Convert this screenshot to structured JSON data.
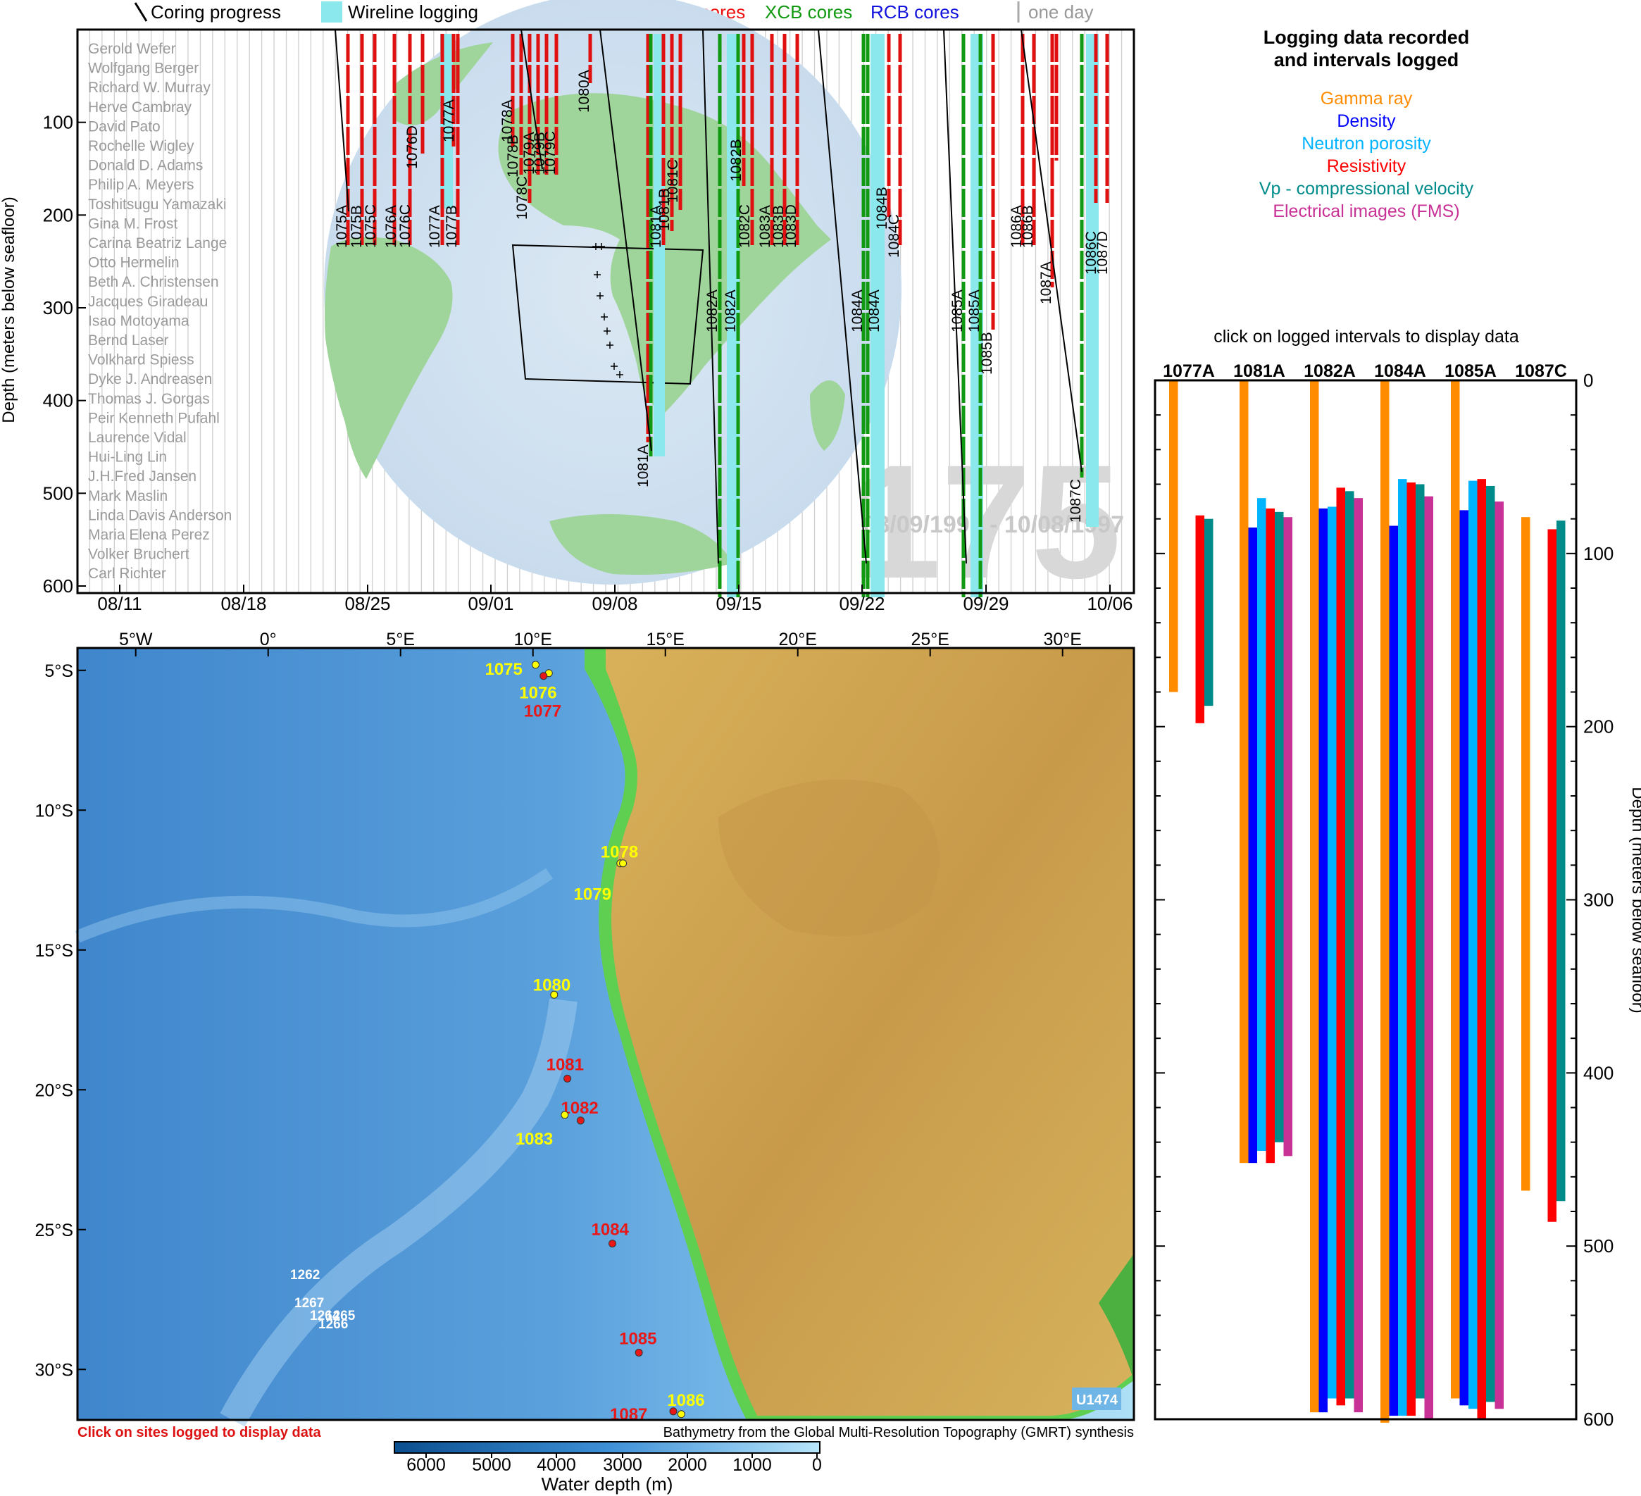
{
  "legend": {
    "coring": "Coring progress",
    "wireline": "Wireline logging",
    "apc": "APC cores",
    "xcb": "XCB cores",
    "rcb": "RCB cores",
    "one_day": "one day"
  },
  "timeline": {
    "ylabel": "Depth (meters below seafloor)",
    "y_ticks": [
      "100",
      "200",
      "300",
      "400",
      "500",
      "600"
    ],
    "x_ticks": [
      "08/11",
      "08/18",
      "08/25",
      "09/01",
      "09/08",
      "09/15",
      "09/22",
      "09/29",
      "10/06"
    ],
    "expedition": "175",
    "date_range": "08/09/1997 - 10/08/1997",
    "scientists": [
      "Gerold Wefer",
      "Wolfgang Berger",
      "Richard W. Murray",
      "Herve Cambray",
      "David Pato",
      "Rochelle Wigley",
      "Donald D. Adams",
      "Philip A. Meyers",
      "Toshitsugu Yamazaki",
      "Gina M. Frost",
      "Carina Beatriz Lange",
      "Otto Hermelin",
      "Beth A. Christensen",
      "Jacques Giradeau",
      "Isao Motoyama",
      "Bernd Laser",
      "Volkhard Spiess",
      "Dyke J. Andreasen",
      "Thomas J. Gorgas",
      "Peir Kenneth Pufahl",
      "Laurence Vidal",
      "Hui-Ling Lin",
      "J.H.Fred Jansen",
      "Mark Maslin",
      "Linda Davis Anderson",
      "Maria Elena Perez",
      "Volker Bruchert",
      "Carl Richter"
    ],
    "hole_labels": [
      {
        "text": "1075A",
        "x": 492,
        "y": 352
      },
      {
        "text": "1075B",
        "x": 513,
        "y": 352
      },
      {
        "text": "1075C",
        "x": 533,
        "y": 352
      },
      {
        "text": "1076A",
        "x": 562,
        "y": 352
      },
      {
        "text": "1076C",
        "x": 582,
        "y": 352
      },
      {
        "text": "1076D",
        "x": 592,
        "y": 240
      },
      {
        "text": "1077A",
        "x": 624,
        "y": 352
      },
      {
        "text": "1077A",
        "x": 644,
        "y": 202
      },
      {
        "text": "1077B",
        "x": 648,
        "y": 352
      },
      {
        "text": "1078A",
        "x": 727,
        "y": 202
      },
      {
        "text": "1078B",
        "x": 735,
        "y": 252
      },
      {
        "text": "1078C",
        "x": 748,
        "y": 312
      },
      {
        "text": "1079A",
        "x": 758,
        "y": 248
      },
      {
        "text": "1079B",
        "x": 773,
        "y": 248
      },
      {
        "text": "1079C",
        "x": 788,
        "y": 248
      },
      {
        "text": "1080A",
        "x": 836,
        "y": 160
      },
      {
        "text": "1081A",
        "x": 920,
        "y": 692
      },
      {
        "text": "1081A",
        "x": 938,
        "y": 352
      },
      {
        "text": "1081B",
        "x": 950,
        "y": 328
      },
      {
        "text": "1081C",
        "x": 962,
        "y": 288
      },
      {
        "text": "1082A",
        "x": 1018,
        "y": 472
      },
      {
        "text": "1082A",
        "x": 1044,
        "y": 472
      },
      {
        "text": "1082B",
        "x": 1052,
        "y": 258
      },
      {
        "text": "1082C",
        "x": 1064,
        "y": 352
      },
      {
        "text": "1083A",
        "x": 1093,
        "y": 352
      },
      {
        "text": "1083B",
        "x": 1112,
        "y": 352
      },
      {
        "text": "1083D",
        "x": 1130,
        "y": 352
      },
      {
        "text": "1084A",
        "x": 1224,
        "y": 472
      },
      {
        "text": "1084A",
        "x": 1248,
        "y": 472
      },
      {
        "text": "1084B",
        "x": 1259,
        "y": 326
      },
      {
        "text": "1084C",
        "x": 1276,
        "y": 366
      },
      {
        "text": "1085A",
        "x": 1366,
        "y": 472
      },
      {
        "text": "1085A",
        "x": 1390,
        "y": 472
      },
      {
        "text": "1085B",
        "x": 1408,
        "y": 532
      },
      {
        "text": "1086A",
        "x": 1450,
        "y": 352
      },
      {
        "text": "1086B",
        "x": 1466,
        "y": 352
      },
      {
        "text": "1087A",
        "x": 1492,
        "y": 432
      },
      {
        "text": "1087C",
        "x": 1534,
        "y": 742
      },
      {
        "text": "1086C",
        "x": 1556,
        "y": 390
      },
      {
        "text": "1087D",
        "x": 1572,
        "y": 390
      }
    ]
  },
  "log_panel": {
    "title_line1": "Logging data recorded",
    "title_line2": "and intervals logged",
    "categories": [
      {
        "name": "Gamma ray",
        "color": "#ff8c00"
      },
      {
        "name": "Density",
        "color": "#0000ff"
      },
      {
        "name": "Neutron porosity",
        "color": "#00b4ff"
      },
      {
        "name": "Resistivity",
        "color": "#ff0000"
      },
      {
        "name": "Vp - compressional velocity",
        "color": "#008b8b"
      },
      {
        "name": "Electrical images (FMS)",
        "color": "#c83296"
      }
    ],
    "instruction": "click on logged intervals to display data",
    "ylabel": "Depth (meters below seafloor)",
    "y_ticks": [
      "0",
      "100",
      "200",
      "300",
      "400",
      "500",
      "600"
    ]
  },
  "chart_data": {
    "type": "bar",
    "y_range": [
      0,
      600
    ],
    "y_inverted": true,
    "holes": [
      {
        "name": "1077A",
        "intervals": [
          {
            "log": "Gamma ray",
            "top": 0,
            "bottom": 180
          },
          {
            "log": "Resistivity",
            "top": 78,
            "bottom": 198
          },
          {
            "log": "Vp - compressional velocity",
            "top": 80,
            "bottom": 188
          }
        ]
      },
      {
        "name": "1081A",
        "intervals": [
          {
            "log": "Gamma ray",
            "top": 0,
            "bottom": 452
          },
          {
            "log": "Density",
            "top": 85,
            "bottom": 452
          },
          {
            "log": "Neutron porosity",
            "top": 68,
            "bottom": 445
          },
          {
            "log": "Resistivity",
            "top": 74,
            "bottom": 452
          },
          {
            "log": "Vp - compressional velocity",
            "top": 76,
            "bottom": 440
          },
          {
            "log": "Electrical images (FMS)",
            "top": 79,
            "bottom": 448
          }
        ]
      },
      {
        "name": "1082A",
        "intervals": [
          {
            "log": "Gamma ray",
            "top": 0,
            "bottom": 596
          },
          {
            "log": "Density",
            "top": 74,
            "bottom": 596
          },
          {
            "log": "Neutron porosity",
            "top": 73,
            "bottom": 588
          },
          {
            "log": "Resistivity",
            "top": 62,
            "bottom": 592
          },
          {
            "log": "Vp - compressional velocity",
            "top": 64,
            "bottom": 588
          },
          {
            "log": "Electrical images (FMS)",
            "top": 68,
            "bottom": 596
          }
        ]
      },
      {
        "name": "1084A",
        "intervals": [
          {
            "log": "Gamma ray",
            "top": 0,
            "bottom": 602
          },
          {
            "log": "Density",
            "top": 84,
            "bottom": 598
          },
          {
            "log": "Neutron porosity",
            "top": 57,
            "bottom": 598
          },
          {
            "log": "Resistivity",
            "top": 59,
            "bottom": 598
          },
          {
            "log": "Vp - compressional velocity",
            "top": 60,
            "bottom": 588
          },
          {
            "log": "Electrical images (FMS)",
            "top": 67,
            "bottom": 600
          }
        ]
      },
      {
        "name": "1085A",
        "intervals": [
          {
            "log": "Gamma ray",
            "top": 0,
            "bottom": 588
          },
          {
            "log": "Density",
            "top": 75,
            "bottom": 592
          },
          {
            "log": "Neutron porosity",
            "top": 58,
            "bottom": 594
          },
          {
            "log": "Resistivity",
            "top": 57,
            "bottom": 600
          },
          {
            "log": "Vp - compressional velocity",
            "top": 61,
            "bottom": 590
          },
          {
            "log": "Electrical images (FMS)",
            "top": 70,
            "bottom": 594
          }
        ]
      },
      {
        "name": "1087C",
        "intervals": [
          {
            "log": "Gamma ray",
            "top": 79,
            "bottom": 468
          },
          {
            "log": "Resistivity",
            "top": 86,
            "bottom": 486
          },
          {
            "log": "Vp - compressional velocity",
            "top": 81,
            "bottom": 474
          }
        ]
      }
    ]
  },
  "map": {
    "lon_labels": [
      "5°W",
      "0°",
      "5°E",
      "10°E",
      "15°E",
      "20°E",
      "25°E",
      "30°E"
    ],
    "lat_labels": [
      "5°S",
      "10°S",
      "15°S",
      "20°S",
      "25°S",
      "30°S"
    ],
    "sites": [
      {
        "label": "1075",
        "color": "#ffff00",
        "lat": -4.8,
        "lon": 10.1
      },
      {
        "label": "1076",
        "color": "#ffff00",
        "lat": -5.1,
        "lon": 10.6
      },
      {
        "label": "1077",
        "color": "#e81818",
        "lat": -5.2,
        "lon": 10.4
      },
      {
        "label": "1078",
        "color": "#ffff00",
        "lat": -11.9,
        "lon": 13.3
      },
      {
        "label": "1079",
        "color": "#ffff00",
        "lat": -11.9,
        "lon": 13.4
      },
      {
        "label": "1080",
        "color": "#ffff00",
        "lat": -16.6,
        "lon": 10.8
      },
      {
        "label": "1081",
        "color": "#e81818",
        "lat": -19.6,
        "lon": 11.3
      },
      {
        "label": "1082",
        "color": "#e81818",
        "lat": -21.1,
        "lon": 11.8
      },
      {
        "label": "1083",
        "color": "#ffff00",
        "lat": -20.9,
        "lon": 11.2
      },
      {
        "label": "1084",
        "color": "#e81818",
        "lat": -25.5,
        "lon": 13.0
      },
      {
        "label": "1085",
        "color": "#e81818",
        "lat": -29.4,
        "lon": 14.0
      },
      {
        "label": "1086",
        "color": "#ffff00",
        "lat": -31.6,
        "lon": 15.6
      },
      {
        "label": "1087",
        "color": "#e81818",
        "lat": -31.5,
        "lon": 15.3
      }
    ],
    "other_sites": [
      "1262",
      "1267",
      "1264",
      "1265",
      "1266"
    ],
    "badge": "U1474",
    "click_note": "Click on sites logged to display data",
    "credit": "Bathymetry from the Global Multi-Resolution Topography (GMRT) synthesis",
    "colorbar_ticks": [
      "6000",
      "5000",
      "4000",
      "3000",
      "2000",
      "1000",
      "0"
    ],
    "colorbar_label": "Water depth (m)"
  }
}
